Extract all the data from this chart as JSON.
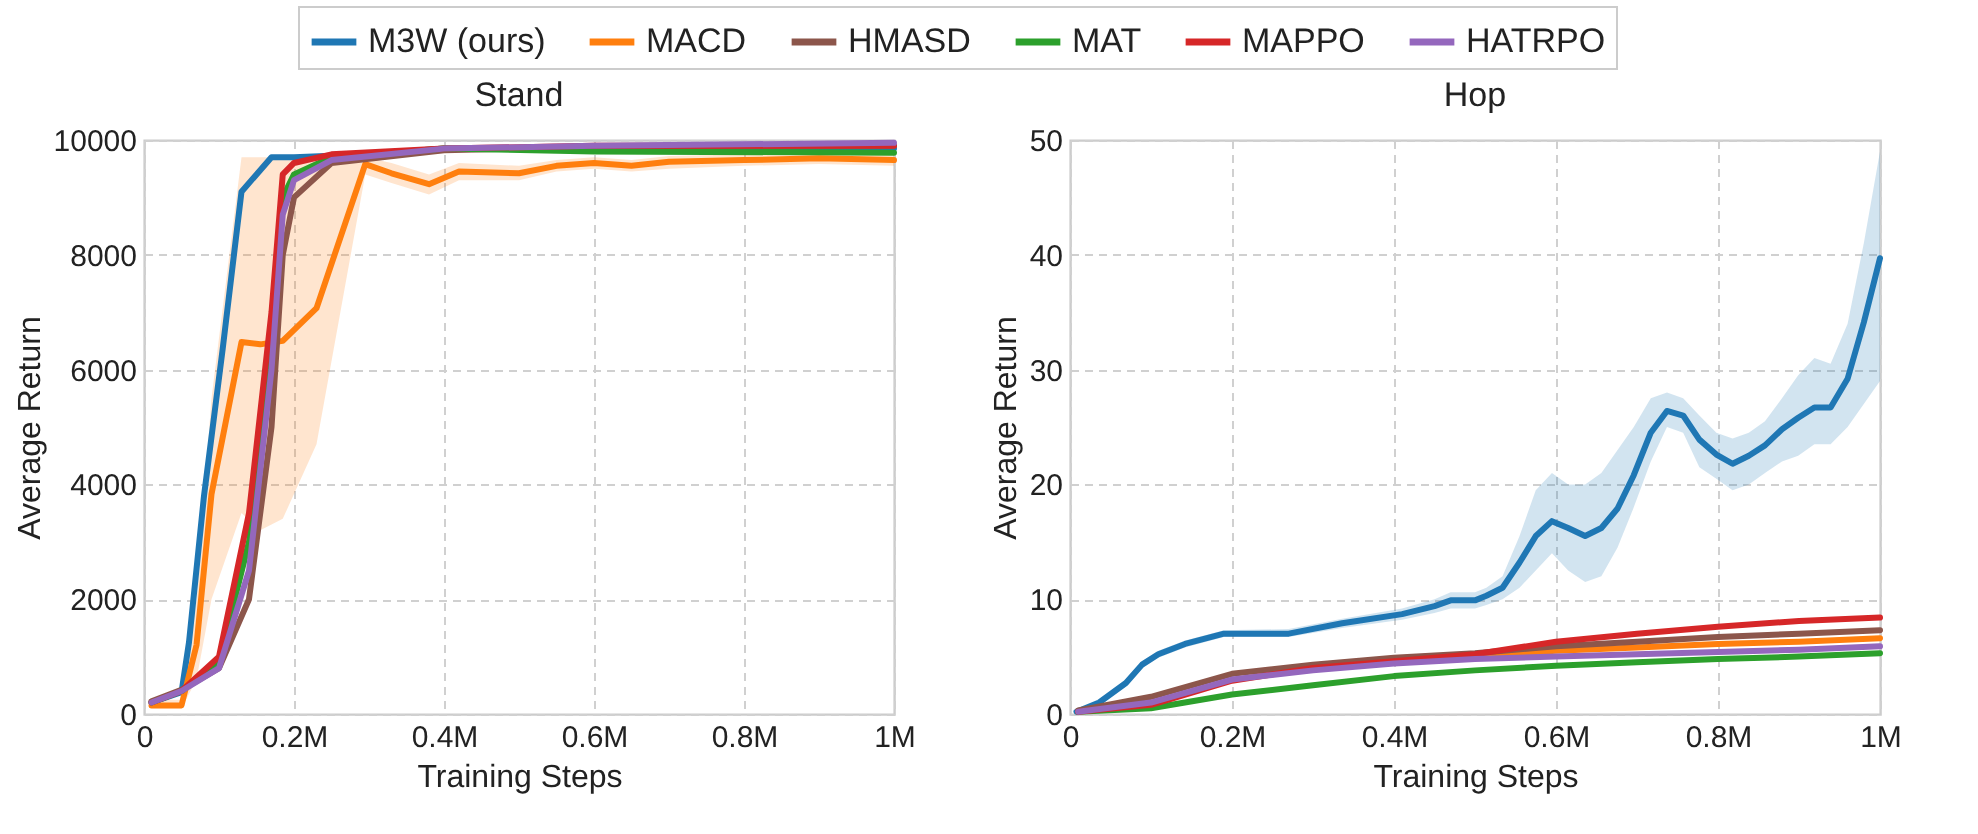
{
  "chart_data": [
    {
      "type": "line",
      "title": "Stand",
      "xlabel": "Training Steps",
      "ylabel": "Average Return",
      "xlim": [
        0,
        1000000
      ],
      "ylim": [
        0,
        10000
      ],
      "xticks": [
        0,
        {
          "value": 200000,
          "label": "0.2M"
        },
        {
          "value": 400000,
          "label": "0.4M"
        },
        {
          "value": 600000,
          "label": "0.6M"
        },
        {
          "value": 800000,
          "label": "0.8M"
        },
        {
          "value": 1000000,
          "label": "1M"
        }
      ],
      "yticks": [
        0,
        2000,
        4000,
        6000,
        8000,
        10000
      ],
      "grid": true,
      "legend": "top",
      "series": [
        {
          "name": "M3W (ours)",
          "color": "#1f77b4",
          "x": [
            10000,
            50000,
            60000,
            80000,
            105000,
            130000,
            170000,
            200000,
            300000,
            400000,
            600000,
            800000,
            1000000
          ],
          "values": [
            200,
            380,
            1250,
            3800,
            6370,
            9100,
            9700,
            9700,
            9750,
            9850,
            9850,
            9850,
            9850
          ]
        },
        {
          "name": "MACD",
          "color": "#ff7f0e",
          "x": [
            10000,
            50000,
            70000,
            90000,
            130000,
            155000,
            185000,
            230000,
            295000,
            330000,
            380000,
            420000,
            500000,
            550000,
            600000,
            650000,
            700000,
            800000,
            900000,
            1000000
          ],
          "values": [
            150,
            150,
            1200,
            3830,
            6480,
            6440,
            6500,
            7070,
            9580,
            9420,
            9230,
            9450,
            9420,
            9550,
            9600,
            9550,
            9620,
            9650,
            9680,
            9650
          ],
          "lower": [
            100,
            100,
            600,
            2000,
            3500,
            3200,
            3400,
            4700,
            9400,
            9250,
            9050,
            9300,
            9300,
            9450,
            9500,
            9450,
            9500,
            9550,
            9580,
            9550
          ],
          "upper": [
            250,
            250,
            2000,
            5500,
            9700,
            9700,
            9700,
            9700,
            9700,
            9600,
            9400,
            9600,
            9550,
            9650,
            9700,
            9650,
            9720,
            9750,
            9780,
            9750
          ]
        },
        {
          "name": "HMASD",
          "color": "#8c564b",
          "x": [
            10000,
            50000,
            100000,
            140000,
            170000,
            185000,
            200000,
            250000,
            400000,
            600000,
            1000000
          ],
          "values": [
            220,
            420,
            800,
            2000,
            5000,
            8000,
            9000,
            9600,
            9820,
            9880,
            9900
          ]
        },
        {
          "name": "MAT",
          "color": "#2ca02c",
          "x": [
            10000,
            50000,
            100000,
            140000,
            170000,
            185000,
            200000,
            250000,
            400000,
            600000,
            1000000
          ],
          "values": [
            200,
            400,
            900,
            3000,
            6500,
            9000,
            9400,
            9700,
            9850,
            9800,
            9780
          ]
        },
        {
          "name": "MAPPO",
          "color": "#d62728",
          "x": [
            10000,
            50000,
            100000,
            140000,
            170000,
            185000,
            200000,
            250000,
            400000,
            600000,
            1000000
          ],
          "values": [
            200,
            400,
            1000,
            3500,
            7000,
            9400,
            9600,
            9750,
            9850,
            9900,
            9900
          ]
        },
        {
          "name": "HATRPO",
          "color": "#9467bd",
          "x": [
            10000,
            50000,
            100000,
            140000,
            170000,
            185000,
            200000,
            250000,
            400000,
            600000,
            1000000
          ],
          "values": [
            200,
            400,
            800,
            2500,
            6000,
            8700,
            9300,
            9650,
            9850,
            9900,
            9950
          ]
        }
      ]
    },
    {
      "type": "line",
      "title": "Hop",
      "xlabel": "Training Steps",
      "ylabel": "Average Return",
      "xlim": [
        0,
        1000000
      ],
      "ylim": [
        0,
        50
      ],
      "xticks": [
        0,
        {
          "value": 200000,
          "label": "0.2M"
        },
        {
          "value": 400000,
          "label": "0.4M"
        },
        {
          "value": 600000,
          "label": "0.6M"
        },
        {
          "value": 800000,
          "label": "0.8M"
        },
        {
          "value": 1000000,
          "label": "1M"
        }
      ],
      "yticks": [
        0,
        10,
        20,
        30,
        40,
        50
      ],
      "grid": true,
      "legend": "top",
      "series": [
        {
          "name": "M3W (ours)",
          "color": "#1f77b4",
          "x": [
            8000,
            36000,
            69000,
            89000,
            109000,
            142000,
            190000,
            270000,
            336000,
            410000,
            450000,
            470000,
            500000,
            514000,
            534000,
            555000,
            575000,
            595000,
            615000,
            636000,
            656000,
            676000,
            696000,
            717000,
            737000,
            757000,
            777000,
            798000,
            818000,
            838000,
            858000,
            879000,
            899000,
            919000,
            939000,
            960000,
            980000,
            1000000
          ],
          "values": [
            0.2,
            1,
            2.7,
            4.3,
            5.2,
            6.1,
            7,
            7,
            7.9,
            8.7,
            9.4,
            9.9,
            9.9,
            10.3,
            11,
            13.2,
            15.5,
            16.8,
            16.2,
            15.5,
            16.2,
            17.9,
            20.8,
            24.5,
            26.4,
            26,
            23.9,
            22.6,
            21.8,
            22.5,
            23.4,
            24.8,
            25.8,
            26.7,
            26.7,
            29.2,
            34.1,
            39.7
          ],
          "lower": [
            0.1,
            0.8,
            2.4,
            4,
            4.9,
            5.8,
            6.7,
            6.7,
            7.5,
            8.2,
            8.8,
            9.2,
            9.2,
            9.5,
            10,
            11,
            12.5,
            14,
            12.5,
            11.5,
            12,
            14.5,
            18,
            22,
            25,
            24.5,
            21.5,
            20.5,
            19.5,
            20,
            21,
            22,
            22.5,
            23.5,
            23.5,
            25,
            27,
            29
          ],
          "upper": [
            0.3,
            1.2,
            3,
            4.6,
            5.5,
            6.4,
            7.3,
            7.4,
            8.3,
            9.2,
            10,
            10.6,
            10.6,
            11,
            12,
            15.5,
            19.5,
            21,
            20,
            20,
            21,
            23,
            25,
            27.5,
            28,
            27.5,
            26,
            24.5,
            24,
            24.5,
            25.5,
            27.5,
            29.5,
            31,
            30.5,
            34,
            41,
            49
          ]
        },
        {
          "name": "MACD",
          "color": "#ff7f0e",
          "x": [
            400000,
            500000,
            600000,
            700000,
            800000,
            900000,
            1000000
          ],
          "values": [
            4.6,
            5.1,
            5.5,
            5.8,
            6.1,
            6.3,
            6.6
          ]
        },
        {
          "name": "HMASD",
          "color": "#8c564b",
          "x": [
            10000,
            100000,
            200000,
            300000,
            400000,
            500000,
            600000,
            700000,
            800000,
            900000,
            1000000
          ],
          "values": [
            0.3,
            1.5,
            3.5,
            4.3,
            4.9,
            5.3,
            5.9,
            6.3,
            6.7,
            7,
            7.3
          ]
        },
        {
          "name": "MAT",
          "color": "#2ca02c",
          "x": [
            10000,
            100000,
            200000,
            300000,
            400000,
            500000,
            600000,
            700000,
            800000,
            900000,
            1000000
          ],
          "values": [
            0.2,
            0.5,
            1.7,
            2.5,
            3.3,
            3.8,
            4.2,
            4.5,
            4.8,
            5,
            5.3
          ]
        },
        {
          "name": "MAPPO",
          "color": "#d62728",
          "x": [
            10000,
            100000,
            200000,
            300000,
            400000,
            500000,
            600000,
            700000,
            800000,
            900000,
            1000000
          ],
          "values": [
            0.2,
            0.8,
            2.9,
            4,
            4.6,
            5.2,
            6.3,
            7,
            7.6,
            8.1,
            8.4
          ]
        },
        {
          "name": "HATRPO",
          "color": "#9467bd",
          "x": [
            10000,
            100000,
            200000,
            300000,
            400000,
            500000,
            600000,
            700000,
            800000,
            900000,
            1000000
          ],
          "values": [
            0.2,
            1,
            3,
            3.8,
            4.4,
            4.8,
            5,
            5.2,
            5.4,
            5.6,
            5.9
          ]
        }
      ]
    }
  ]
}
